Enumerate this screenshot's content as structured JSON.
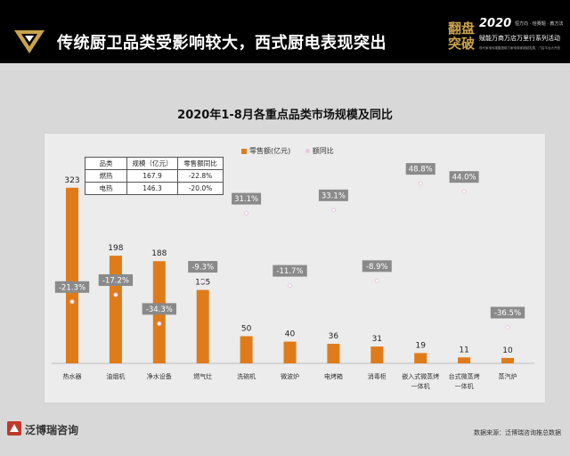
{
  "header": {
    "title": "传统厨卫品类受影响较大，西式厨电表现突出",
    "brand_calligraphy": "翻盘突破",
    "brand_year": "2020",
    "brand_tags": "恒方向 · 恰赛题 · 教方法",
    "brand_event": "赋能万商万店万里行系列活动",
    "brand_subline": "现代家电传媒集团助力家电商家超越发展，门店平台大开放"
  },
  "chart_data": {
    "type": "bar",
    "title": "2020年1-8月各重点品类市场规模及同比",
    "categories": [
      "热水器",
      "油烟机",
      "净水设备",
      "燃气灶",
      "洗碗机",
      "微波炉",
      "电烤箱",
      "消毒柜",
      "嵌入式微蒸烤\n一体机",
      "台式微蒸烤\n一体机",
      "蒸汽炉"
    ],
    "series": [
      {
        "name": "零售额(亿元)",
        "values": [
          323,
          198,
          188,
          135,
          50,
          40,
          36,
          31,
          19,
          11,
          10
        ],
        "color": "#e07b1a"
      },
      {
        "name": "额同比",
        "values": [
          -21.3,
          -17.2,
          -34.3,
          -9.3,
          31.1,
          -11.7,
          33.1,
          -8.9,
          48.8,
          44.0,
          -36.5
        ],
        "unit": "%",
        "color": "#e8c8e0"
      }
    ],
    "data_labels_bar": [
      "323",
      "198",
      "188",
      "135",
      "50",
      "40",
      "36",
      "31",
      "19",
      "11",
      "10"
    ],
    "data_labels_yoy": [
      "-21.3%",
      "-17.2%",
      "-34.3%",
      "-9.3%",
      "31.1%",
      "-11.7%",
      "33.1%",
      "-8.9%",
      "48.8%",
      "44.0%",
      "-36.5%"
    ],
    "ylim_bar": [
      0,
      380
    ],
    "ylim_yoy": [
      -60,
      70
    ],
    "grid": false,
    "legend": "top-center"
  },
  "inset_table": {
    "headers": [
      "品类",
      "规模（亿元）",
      "零售额同比"
    ],
    "rows": [
      [
        "燃热",
        "167.9",
        "-22.8%"
      ],
      [
        "电热",
        "146.3",
        "-20.0%"
      ]
    ]
  },
  "footer": {
    "brand": "泛博瑞咨询",
    "source": "数据来源：泛博瑞咨询推总数据"
  }
}
